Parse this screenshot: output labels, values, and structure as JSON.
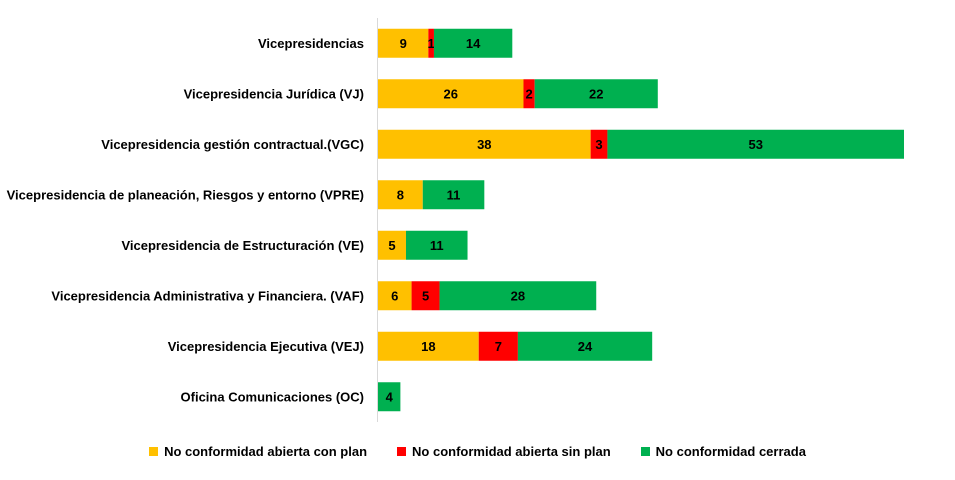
{
  "chart_data": {
    "type": "bar",
    "orientation": "horizontal",
    "stacked": true,
    "categories": [
      "Vicepresidencias",
      "Vicepresidencia Jurídica (VJ)",
      "Vicepresidencia gestión contractual.(VGC)",
      "Vicepresidencia de planeación, Riesgos y entorno (VPRE)",
      "Vicepresidencia de Estructuración (VE)",
      "Vicepresidencia Administrativa y Financiera. (VAF)",
      "Vicepresidencia  Ejecutiva (VEJ)",
      "Oficina Comunicaciones (OC)"
    ],
    "series": [
      {
        "name": "No conformidad abierta con plan",
        "color": "#FFC000",
        "values": [
          9,
          26,
          38,
          8,
          5,
          6,
          18,
          0
        ]
      },
      {
        "name": "No conformidad abierta sin plan",
        "color": "#FF0000",
        "values": [
          1,
          2,
          3,
          0,
          0,
          5,
          7,
          0
        ]
      },
      {
        "name": "No conformidad cerrada",
        "color": "#00B050",
        "values": [
          14,
          22,
          53,
          11,
          11,
          28,
          24,
          4
        ]
      }
    ],
    "xlim": [
      0,
      94
    ],
    "grid": false,
    "legend_position": "bottom"
  }
}
